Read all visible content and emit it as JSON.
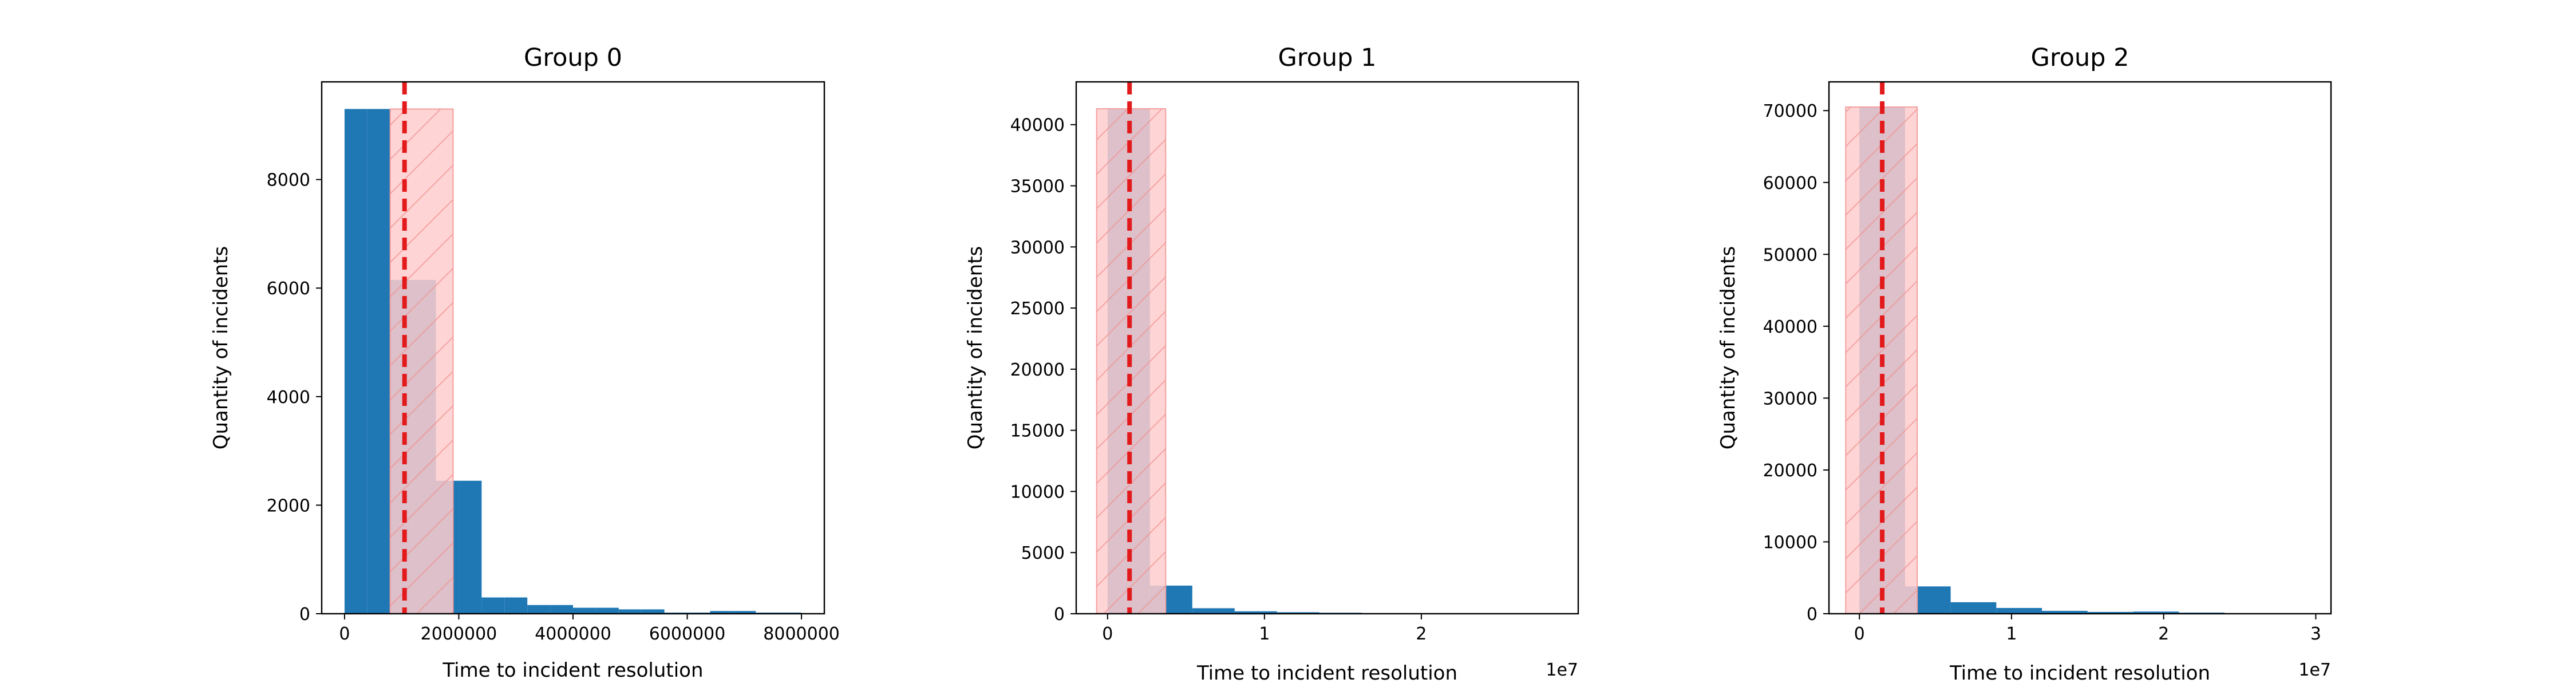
{
  "chart_data": [
    {
      "type": "bar",
      "subtype": "histogram",
      "title": "Group 0",
      "xlabel": "Time to incident resolution",
      "ylabel": "Quantity of incidents",
      "x_offset_label": "",
      "bin_edges": [
        0,
        400000,
        800000,
        1200000,
        1600000,
        2000000,
        2400000,
        2800000,
        3200000,
        3600000,
        4000000,
        4400000,
        4800000,
        5200000,
        5600000,
        6000000,
        6400000,
        6800000,
        7200000,
        7600000,
        8000000
      ],
      "counts": [
        9300,
        9300,
        6150,
        6150,
        2450,
        2450,
        300,
        300,
        160,
        160,
        110,
        110,
        80,
        80,
        20,
        20,
        50,
        50,
        20,
        20
      ],
      "median_line_x": 1050000,
      "shaded_band": [
        800000,
        1900000
      ],
      "shaded_band_top": 9300,
      "xlim": [
        -400000,
        8400000
      ],
      "ylim": [
        0,
        9800
      ],
      "xticks": [
        0,
        2000000,
        4000000,
        6000000,
        8000000
      ],
      "xtick_labels": [
        "0",
        "2000000",
        "4000000",
        "6000000",
        "8000000"
      ],
      "yticks": [
        0,
        2000,
        4000,
        6000,
        8000
      ],
      "ytick_labels": [
        "0",
        "2000",
        "4000",
        "6000",
        "8000"
      ],
      "grid": false,
      "legend": "none",
      "colors": {
        "bars": "#1f77b4",
        "median_line": "#e31a1c",
        "band_fill": "#ffcccc",
        "band_edge": "#f4a0a0"
      }
    },
    {
      "type": "bar",
      "subtype": "histogram",
      "title": "Group 1",
      "xlabel": "Time to incident resolution",
      "ylabel": "Quantity of incidents",
      "x_offset_label": "1e7",
      "bin_edges": [
        0,
        2700000,
        5400000,
        8100000,
        10800000,
        13500000,
        16200000,
        18900000,
        21600000,
        24300000,
        27000000
      ],
      "counts": [
        41300,
        2300,
        450,
        200,
        120,
        80,
        50,
        30,
        20,
        10
      ],
      "median_line_x": 1400000,
      "shaded_band": [
        -700000,
        3700000
      ],
      "shaded_band_top": 41300,
      "xlim": [
        -2000000,
        30000000
      ],
      "ylim": [
        0,
        43500
      ],
      "xticks": [
        0,
        10000000,
        20000000
      ],
      "xtick_labels": [
        "0",
        "1",
        "2"
      ],
      "yticks": [
        0,
        5000,
        10000,
        15000,
        20000,
        25000,
        30000,
        35000,
        40000
      ],
      "ytick_labels": [
        "0",
        "5000",
        "10000",
        "15000",
        "20000",
        "25000",
        "30000",
        "35000",
        "40000"
      ],
      "grid": false,
      "legend": "none",
      "colors": {
        "bars": "#1f77b4",
        "median_line": "#e31a1c",
        "band_fill": "#ffcccc",
        "band_edge": "#f4a0a0"
      }
    },
    {
      "type": "bar",
      "subtype": "histogram",
      "title": "Group 2",
      "xlabel": "Time to incident resolution",
      "ylabel": "Quantity of incidents",
      "x_offset_label": "1e7",
      "bin_edges": [
        0,
        3000000,
        6000000,
        9000000,
        12000000,
        15000000,
        18000000,
        21000000,
        24000000,
        27000000,
        30000000
      ],
      "counts": [
        70500,
        3800,
        1600,
        800,
        400,
        250,
        300,
        150,
        80,
        40
      ],
      "median_line_x": 1500000,
      "shaded_band": [
        -900000,
        3800000
      ],
      "shaded_band_top": 70500,
      "xlim": [
        -2000000,
        31000000
      ],
      "ylim": [
        0,
        74000
      ],
      "xticks": [
        0,
        10000000,
        20000000,
        30000000
      ],
      "xtick_labels": [
        "0",
        "1",
        "2",
        "3"
      ],
      "yticks": [
        0,
        10000,
        20000,
        30000,
        40000,
        50000,
        60000,
        70000
      ],
      "ytick_labels": [
        "0",
        "10000",
        "20000",
        "30000",
        "40000",
        "50000",
        "60000",
        "70000"
      ],
      "grid": false,
      "legend": "none",
      "colors": {
        "bars": "#1f77b4",
        "median_line": "#e31a1c",
        "band_fill": "#ffcccc",
        "band_edge": "#f4a0a0"
      }
    }
  ]
}
